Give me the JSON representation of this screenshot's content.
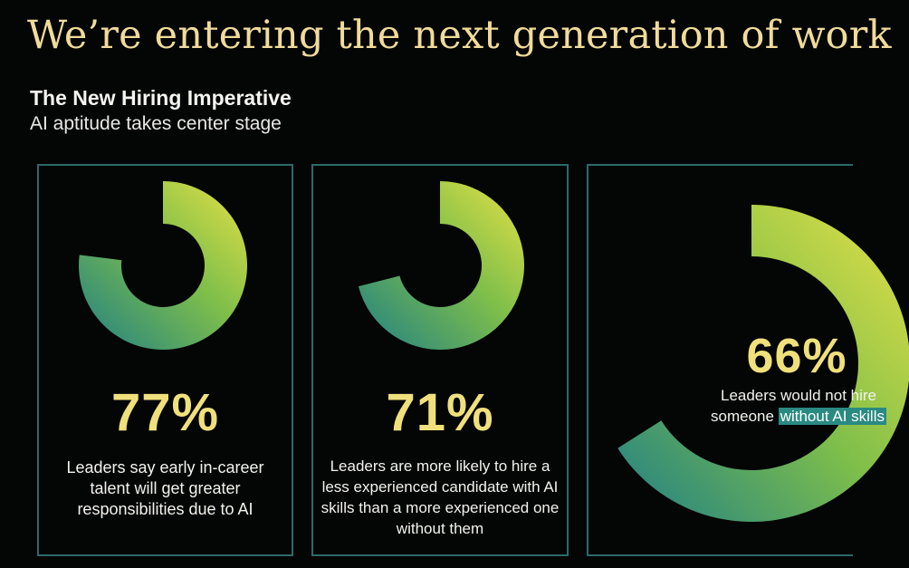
{
  "header": {
    "title": "We’re entering the next generation of work",
    "subtitle": "The New Hiring Imperative",
    "tagline": "AI aptitude takes center stage"
  },
  "colors": {
    "background": "#040505",
    "title": "#f0db9a",
    "gradient_start": "#1f7f86",
    "gradient_end": "#e7e146",
    "card_border": "#2d6a68",
    "highlight": "#2a8a82"
  },
  "chart_data": [
    {
      "type": "donut",
      "value": 77,
      "label": "77%",
      "description": "Leaders say early in-career talent will get greater responsibilities due to AI"
    },
    {
      "type": "donut",
      "value": 71,
      "label": "71%",
      "description": "Leaders are more likely to hire a less experienced candidate with AI skills than a more experienced one without them"
    },
    {
      "type": "donut",
      "value": 66,
      "label": "66%",
      "description_part1": "Leaders would not hire someone",
      "description_highlight": "without AI skills"
    }
  ]
}
